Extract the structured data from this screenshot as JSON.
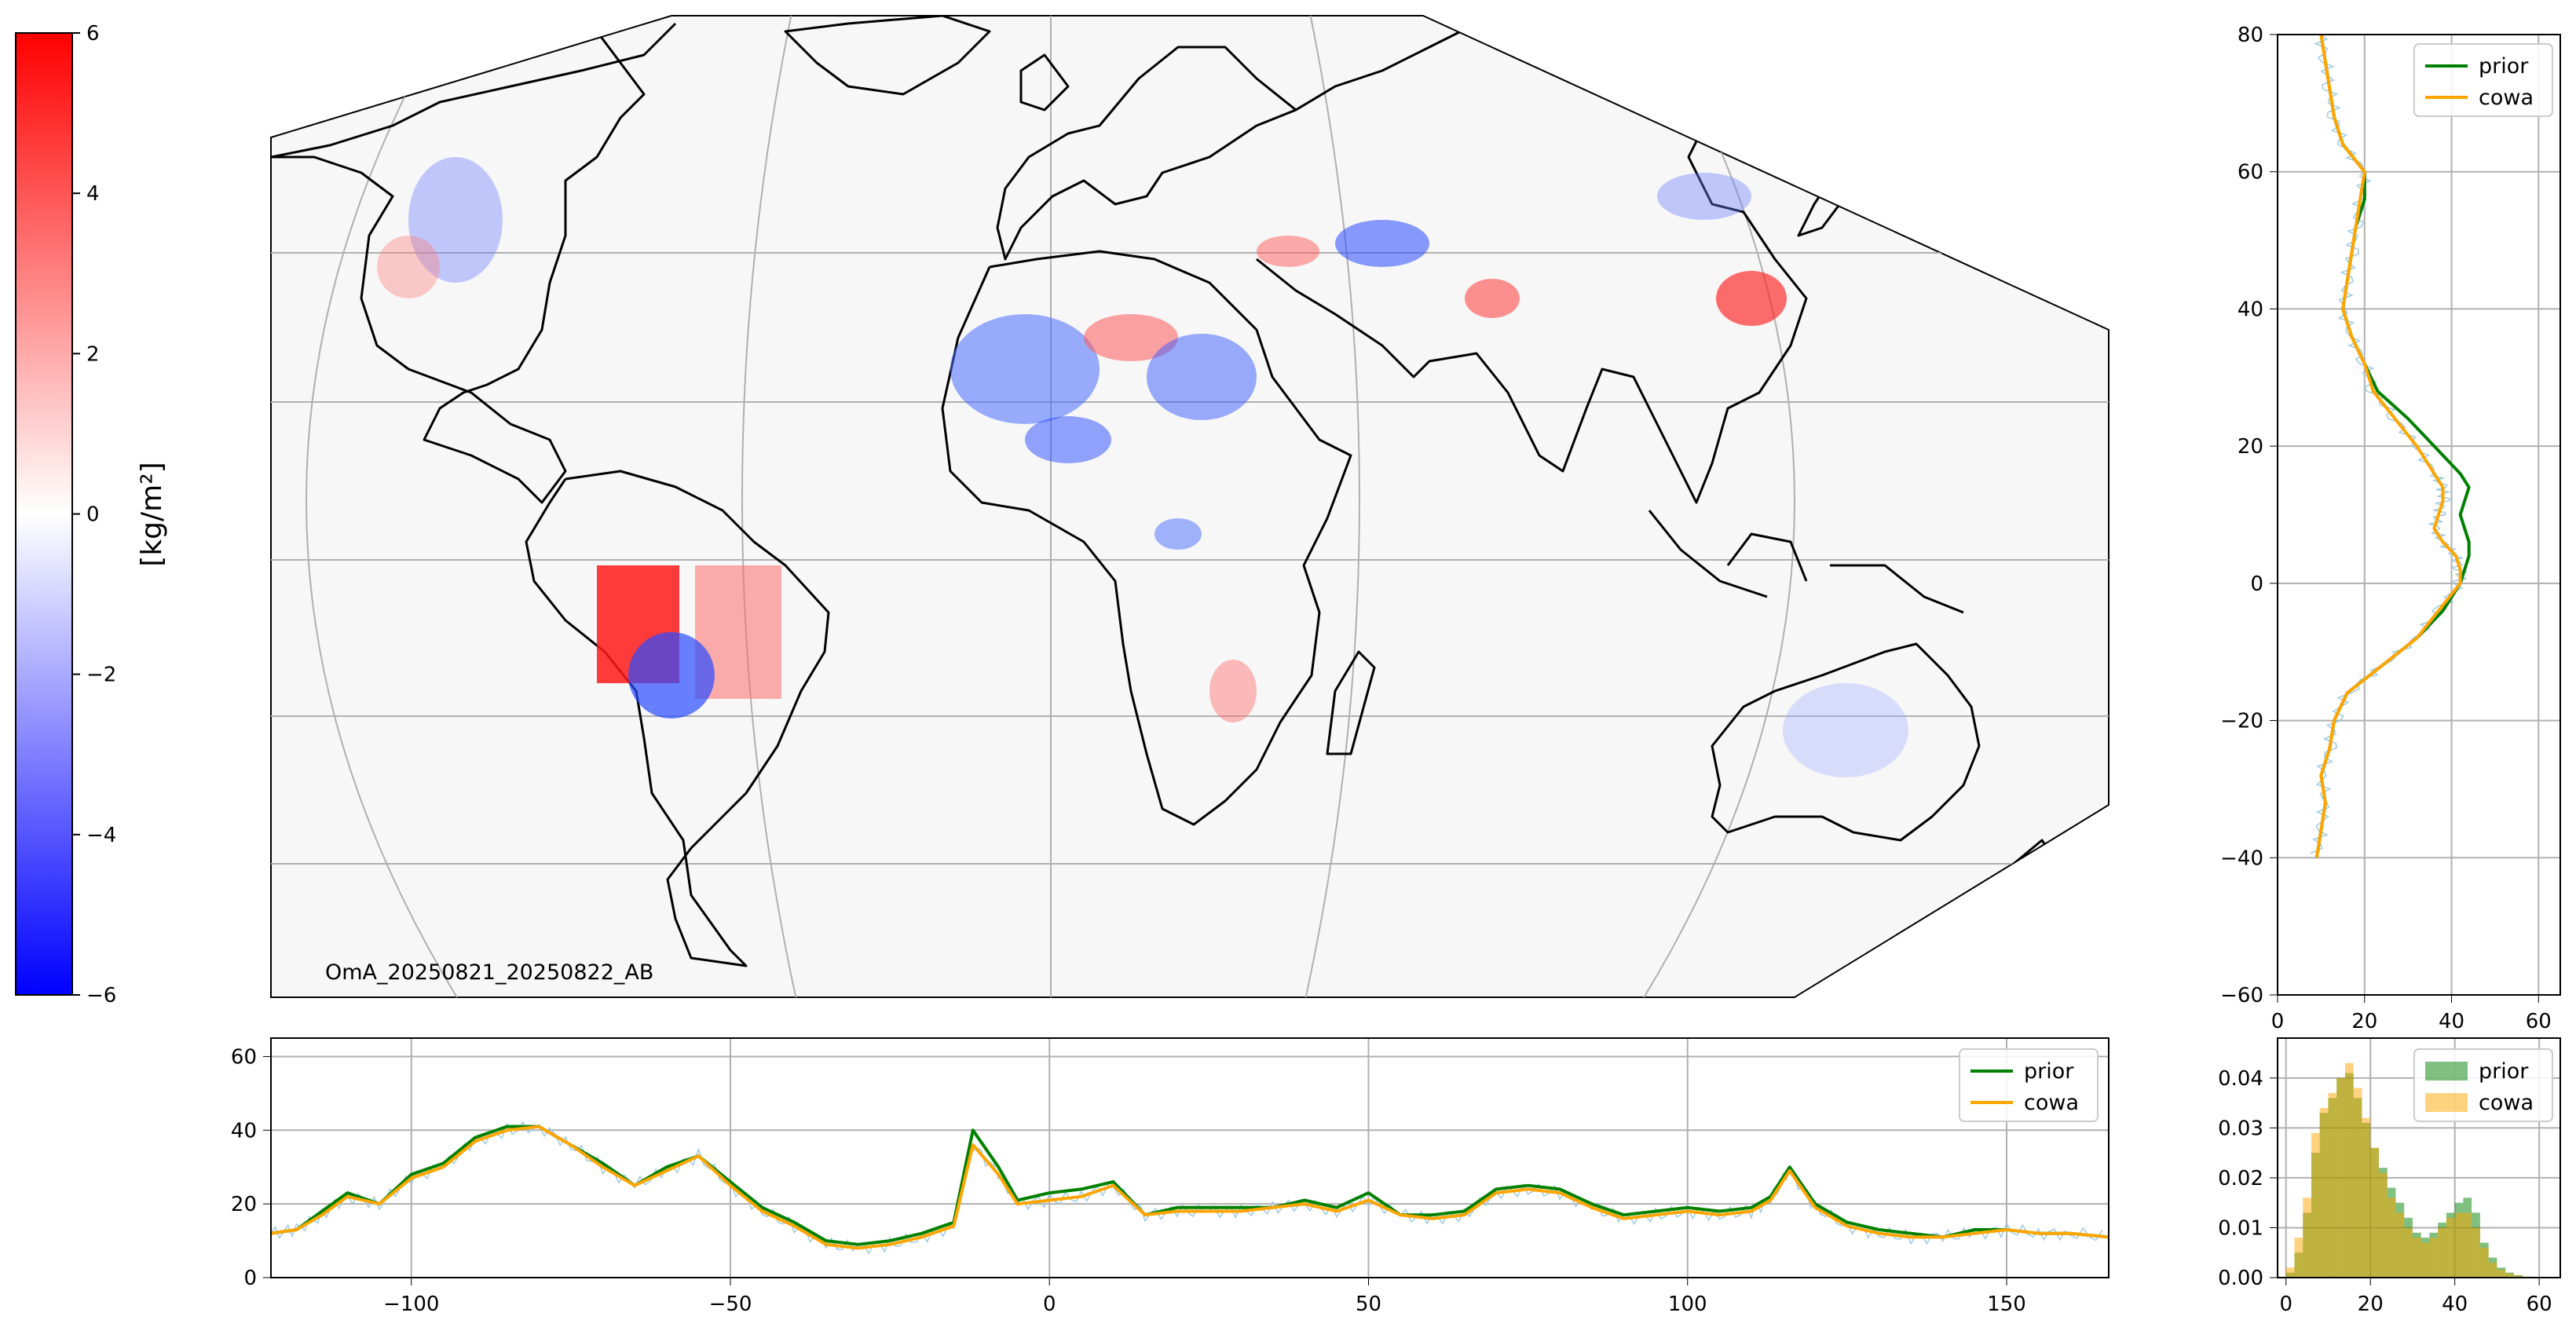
{
  "colorbar": {
    "label": "[kg/m²]",
    "ticks": [
      6,
      4,
      2,
      0,
      -2,
      -4,
      -6
    ],
    "tick_labels": [
      "6",
      "4",
      "2",
      "0",
      "−2",
      "−4",
      "−6"
    ],
    "min": -6,
    "max": 6,
    "colormap": [
      "#0000ff",
      "#ffffff",
      "#ff0000"
    ]
  },
  "map": {
    "annotation": "OmA_20250821_20250822_AB",
    "background": "#f7f7f7",
    "grid_color": "#b0b0b0"
  },
  "colors": {
    "prior": "#008000",
    "cowa": "#ffa500",
    "raw": "#9ecae1"
  },
  "chart_data": [
    {
      "type": "line",
      "id": "lon-profile",
      "xlim": [
        -122,
        166
      ],
      "ylim": [
        0,
        65
      ],
      "xticks": [
        -100,
        -50,
        0,
        50,
        100,
        150
      ],
      "xtick_labels": [
        "−100",
        "−50",
        "0",
        "50",
        "100",
        "150"
      ],
      "yticks": [
        0,
        20,
        40,
        60
      ],
      "grid": true,
      "legend": "top-right",
      "x": [
        -122,
        -118,
        -114,
        -110,
        -105,
        -100,
        -95,
        -90,
        -85,
        -80,
        -75,
        -70,
        -65,
        -60,
        -55,
        -50,
        -45,
        -40,
        -35,
        -30,
        -25,
        -20,
        -15,
        -12,
        -8,
        -5,
        0,
        5,
        10,
        15,
        20,
        25,
        30,
        35,
        40,
        45,
        50,
        55,
        60,
        65,
        70,
        75,
        80,
        85,
        90,
        95,
        100,
        105,
        110,
        113,
        116,
        120,
        125,
        130,
        135,
        140,
        145,
        150,
        155,
        160,
        166
      ],
      "series": [
        {
          "name": "prior",
          "values": [
            12,
            13,
            18,
            23,
            20,
            28,
            31,
            38,
            41,
            41,
            36,
            31,
            25,
            30,
            33,
            26,
            19,
            15,
            10,
            9,
            10,
            12,
            15,
            40,
            30,
            21,
            23,
            24,
            26,
            17,
            19,
            19,
            19,
            19,
            21,
            19,
            23,
            17,
            17,
            18,
            24,
            25,
            24,
            20,
            17,
            18,
            19,
            18,
            19,
            22,
            30,
            20,
            15,
            13,
            12,
            11,
            13,
            13,
            12,
            12,
            11
          ]
        },
        {
          "name": "cowa",
          "values": [
            12,
            13,
            17,
            22,
            20,
            27,
            30,
            37,
            40,
            41,
            36,
            30,
            25,
            29,
            33,
            25,
            18,
            14,
            9,
            8,
            9,
            11,
            14,
            36,
            28,
            20,
            21,
            22,
            25,
            17,
            18,
            18,
            18,
            19,
            20,
            18,
            21,
            17,
            16,
            17,
            23,
            24,
            23,
            19,
            16,
            17,
            18,
            17,
            18,
            21,
            29,
            19,
            14,
            12,
            11,
            11,
            12,
            13,
            12,
            12,
            11
          ]
        }
      ]
    },
    {
      "type": "line",
      "id": "lat-profile",
      "xlim": [
        0,
        65
      ],
      "ylim": [
        -60,
        80
      ],
      "xticks": [
        0,
        20,
        40,
        60
      ],
      "yticks": [
        -60,
        -40,
        -20,
        0,
        20,
        40,
        60,
        80
      ],
      "ytick_labels": [
        "−60",
        "−40",
        "−20",
        "0",
        "20",
        "40",
        "60",
        "80"
      ],
      "grid": true,
      "legend": "top-right",
      "y": [
        80,
        76,
        72,
        68,
        64,
        60,
        56,
        52,
        48,
        44,
        40,
        36,
        32,
        28,
        24,
        20,
        16,
        14,
        12,
        10,
        8,
        6,
        4,
        2,
        0,
        -4,
        -8,
        -12,
        -16,
        -20,
        -24,
        -28,
        -32,
        -36,
        -40
      ],
      "series": [
        {
          "name": "prior",
          "values": [
            10,
            11,
            12,
            13,
            15,
            20,
            20,
            18,
            17,
            16,
            15,
            17,
            20,
            23,
            30,
            36,
            42,
            44,
            43,
            42,
            43,
            44,
            44,
            43,
            42,
            38,
            32,
            24,
            16,
            13,
            12,
            10,
            11,
            10,
            9
          ]
        },
        {
          "name": "cowa",
          "values": [
            10,
            11,
            12,
            13,
            15,
            20,
            19,
            18,
            17,
            16,
            15,
            17,
            20,
            22,
            27,
            32,
            36,
            38,
            38,
            37,
            36,
            38,
            41,
            42,
            42,
            37,
            32,
            24,
            16,
            13,
            12,
            10,
            11,
            10,
            9
          ]
        }
      ]
    },
    {
      "type": "histogram",
      "id": "hist",
      "xlim": [
        -2,
        65
      ],
      "ylim": [
        0,
        0.048
      ],
      "xticks": [
        0,
        20,
        40,
        60
      ],
      "yticks": [
        0.0,
        0.01,
        0.02,
        0.03,
        0.04
      ],
      "ytick_labels": [
        "0.00",
        "0.01",
        "0.02",
        "0.03",
        "0.04"
      ],
      "grid": true,
      "legend": "top-right",
      "bin_edges": [
        0,
        2,
        4,
        6,
        8,
        10,
        12,
        14,
        16,
        18,
        20,
        22,
        24,
        26,
        28,
        30,
        32,
        34,
        36,
        38,
        40,
        42,
        44,
        46,
        48,
        50,
        52,
        54,
        56,
        58,
        60
      ],
      "series": [
        {
          "name": "prior",
          "values": [
            0.001,
            0.005,
            0.013,
            0.025,
            0.033,
            0.036,
            0.04,
            0.041,
            0.036,
            0.031,
            0.026,
            0.022,
            0.018,
            0.015,
            0.012,
            0.009,
            0.008,
            0.009,
            0.011,
            0.013,
            0.015,
            0.016,
            0.013,
            0.007,
            0.004,
            0.002,
            0.001,
            0.0005,
            0.0002,
            0.0001
          ]
        },
        {
          "name": "cowa",
          "values": [
            0.002,
            0.008,
            0.016,
            0.029,
            0.034,
            0.037,
            0.04,
            0.043,
            0.038,
            0.032,
            0.026,
            0.021,
            0.016,
            0.013,
            0.01,
            0.008,
            0.007,
            0.008,
            0.01,
            0.012,
            0.013,
            0.013,
            0.01,
            0.006,
            0.003,
            0.0015,
            0.0008,
            0.0004,
            0.0002,
            0.0001
          ]
        }
      ]
    }
  ]
}
